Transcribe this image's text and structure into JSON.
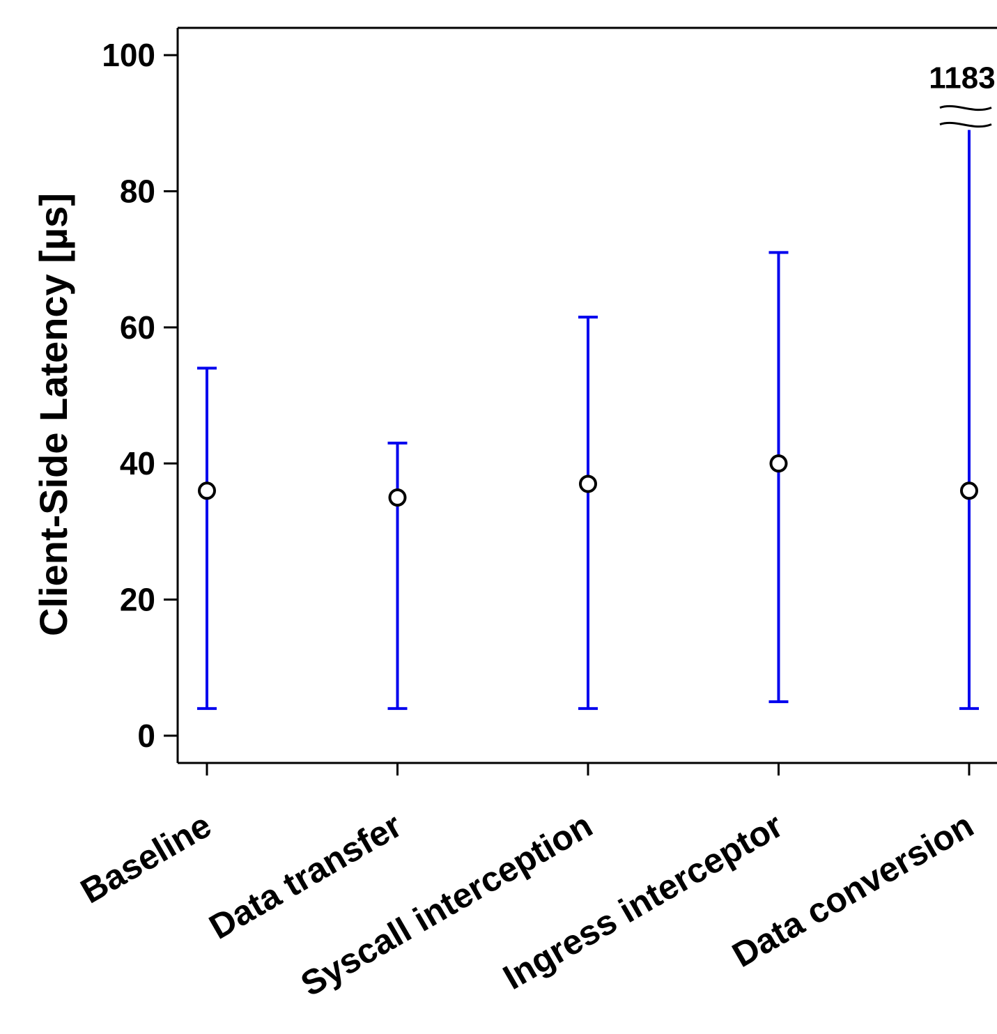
{
  "chart_data": {
    "type": "errorbar",
    "title": "",
    "xlabel": "",
    "ylabel": "Client-Side Latency [µs]",
    "ylim": [
      -4,
      104
    ],
    "yticks": [
      0,
      20,
      40,
      60,
      80,
      100
    ],
    "grid": false,
    "legend": "none",
    "colors": {
      "bar": "#0000ee",
      "marker": "#000000",
      "axis": "#000000"
    },
    "categories": [
      "Baseline",
      "Data transfer",
      "Syscall interception",
      "Ingress interceptor",
      "Data conversion"
    ],
    "series": [
      {
        "center": [
          36,
          35,
          37,
          40,
          36
        ],
        "low": [
          4,
          4,
          4,
          5,
          4
        ],
        "high": [
          54,
          43,
          61.5,
          71,
          1183
        ]
      }
    ],
    "annotations": [
      {
        "category": "Data conversion",
        "text": "1183",
        "type": "axis-break"
      }
    ]
  }
}
